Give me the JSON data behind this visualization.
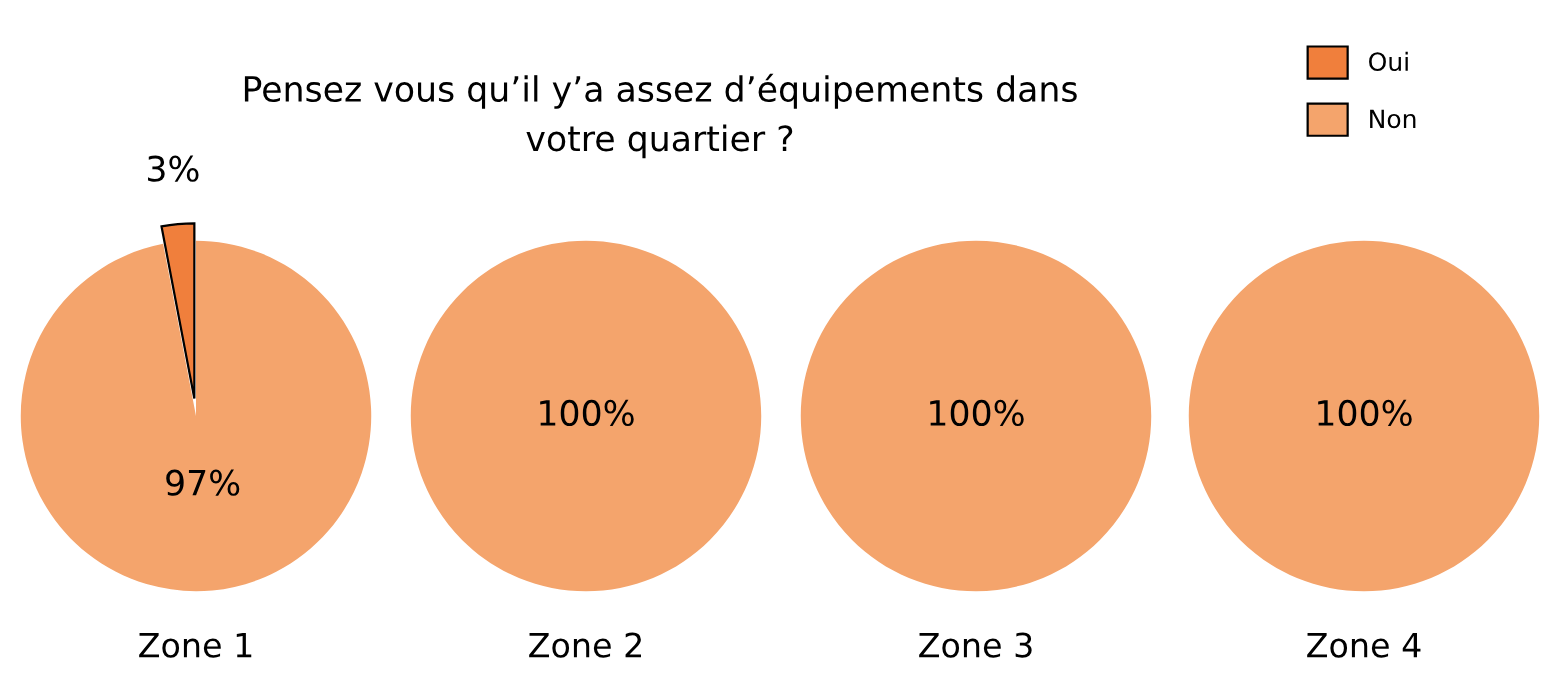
{
  "chart_data": {
    "type": "pie",
    "title": "Pensez vous qu’il y’a assez d’équipements dans\nvotre quartier ?",
    "categories": [
      "Oui",
      "Non"
    ],
    "colors": [
      "#f07f3c",
      "#f4a46c"
    ],
    "legend": "top right",
    "series": [
      {
        "name": "Zone 1",
        "values": [
          3,
          97
        ],
        "value_labels": [
          "3%",
          "97%"
        ]
      },
      {
        "name": "Zone 2",
        "values": [
          0,
          100
        ],
        "value_labels": [
          null,
          "100%"
        ]
      },
      {
        "name": "Zone 3",
        "values": [
          0,
          100
        ],
        "value_labels": [
          null,
          "100%"
        ]
      },
      {
        "name": "Zone 4",
        "values": [
          0,
          100
        ],
        "value_labels": [
          null,
          "100%"
        ]
      }
    ]
  }
}
